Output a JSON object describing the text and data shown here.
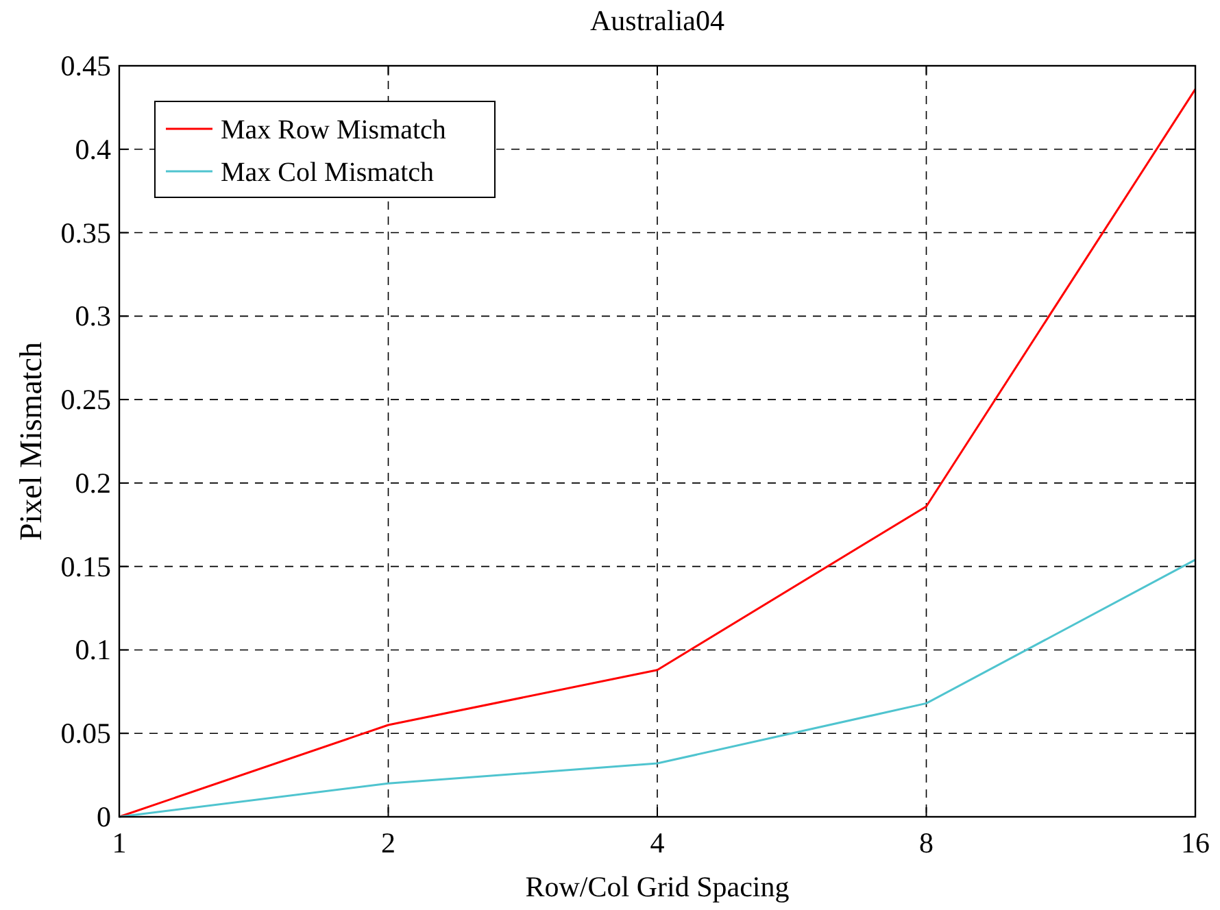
{
  "chart_data": {
    "type": "line",
    "title": "Australia04",
    "xlabel": "Row/Col Grid Spacing",
    "ylabel": "Pixel Mismatch",
    "x": [
      1,
      2,
      4,
      8,
      16
    ],
    "series": [
      {
        "name": "Max Row Mismatch",
        "color": "#ff0000",
        "values": [
          0,
          0.055,
          0.088,
          0.186,
          0.436
        ]
      },
      {
        "name": "Max Col Mismatch",
        "color": "#4fc4cf",
        "values": [
          0,
          0.02,
          0.032,
          0.068,
          0.154
        ]
      }
    ],
    "log": "x",
    "xlim": [
      1,
      16
    ],
    "xticks": [
      1,
      2,
      4,
      8,
      16
    ],
    "ylim": [
      0,
      0.45
    ],
    "yticks": [
      0,
      0.05,
      0.1,
      0.15,
      0.2,
      0.25,
      0.3,
      0.35,
      0.4,
      0.45
    ],
    "grid": true,
    "legend": "top left",
    "marker": "none",
    "line_style": "solid"
  }
}
